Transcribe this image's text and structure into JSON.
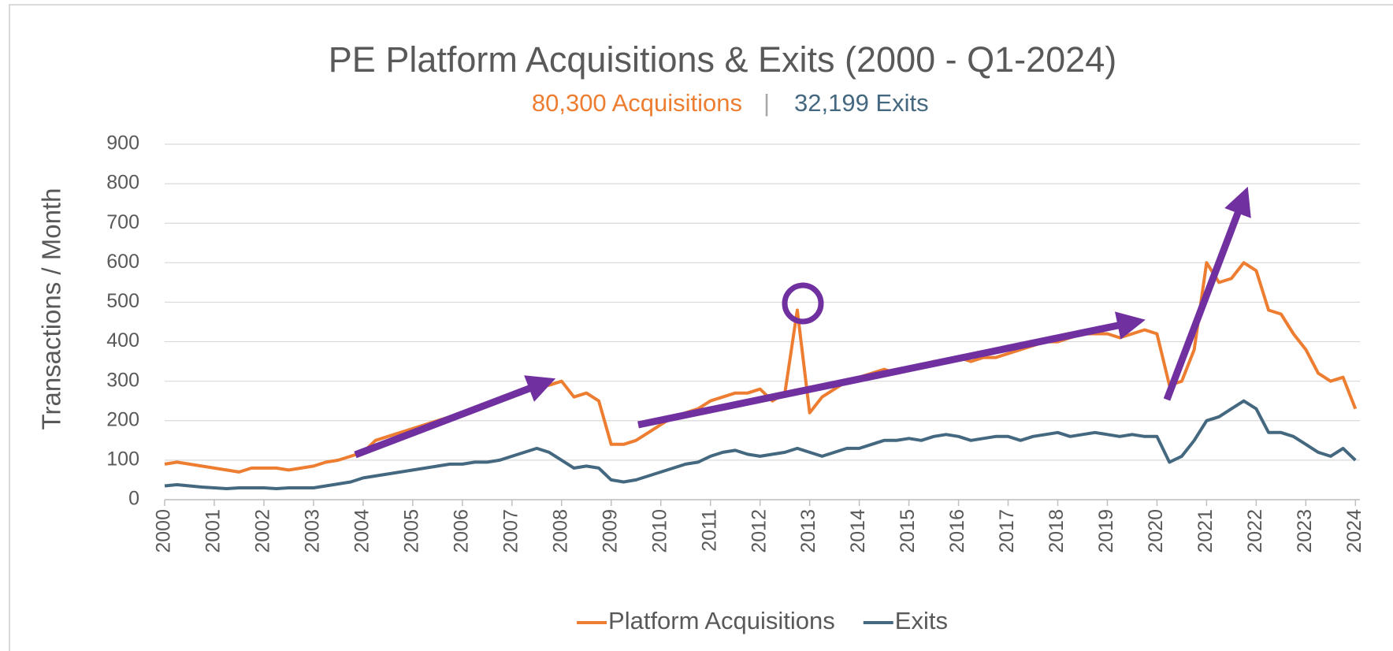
{
  "chart_data": {
    "type": "line",
    "title": "PE Platform Acquisitions & Exits (2000 - Q1-2024)",
    "subtitle": {
      "acquisitions": "80,300 Acquisitions",
      "separator": "|",
      "exits": "32,199 Exits"
    },
    "y_label": "Transactions / Month",
    "x": [
      2000,
      2000.25,
      2000.5,
      2000.75,
      2001,
      2001.25,
      2001.5,
      2001.75,
      2002,
      2002.25,
      2002.5,
      2002.75,
      2003,
      2003.25,
      2003.5,
      2003.75,
      2004,
      2004.25,
      2004.5,
      2004.75,
      2005,
      2005.25,
      2005.5,
      2005.75,
      2006,
      2006.25,
      2006.5,
      2006.75,
      2007,
      2007.25,
      2007.5,
      2007.75,
      2008,
      2008.25,
      2008.5,
      2008.75,
      2009,
      2009.25,
      2009.5,
      2009.75,
      2010,
      2010.25,
      2010.5,
      2010.75,
      2011,
      2011.25,
      2011.5,
      2011.75,
      2012,
      2012.25,
      2012.5,
      2012.75,
      2013,
      2013.25,
      2013.5,
      2013.75,
      2014,
      2014.25,
      2014.5,
      2014.75,
      2015,
      2015.25,
      2015.5,
      2015.75,
      2016,
      2016.25,
      2016.5,
      2016.75,
      2017,
      2017.25,
      2017.5,
      2017.75,
      2018,
      2018.25,
      2018.5,
      2018.75,
      2019,
      2019.25,
      2019.5,
      2019.75,
      2020,
      2020.25,
      2020.5,
      2020.75,
      2021,
      2021.25,
      2021.5,
      2021.75,
      2022,
      2022.25,
      2022.5,
      2022.75,
      2023,
      2023.25,
      2023.5,
      2023.75,
      2024
    ],
    "series": [
      {
        "name": "Platform Acquisitions",
        "color": "#ed7d31",
        "values": [
          90,
          95,
          90,
          85,
          80,
          75,
          70,
          80,
          80,
          80,
          75,
          80,
          85,
          95,
          100,
          110,
          120,
          150,
          160,
          170,
          180,
          190,
          200,
          210,
          220,
          230,
          240,
          250,
          260,
          280,
          290,
          290,
          300,
          260,
          270,
          250,
          140,
          140,
          150,
          170,
          190,
          210,
          220,
          230,
          250,
          260,
          270,
          270,
          280,
          250,
          270,
          480,
          220,
          260,
          280,
          300,
          310,
          320,
          330,
          320,
          330,
          340,
          350,
          350,
          360,
          350,
          360,
          360,
          370,
          380,
          390,
          400,
          400,
          410,
          420,
          420,
          420,
          410,
          420,
          430,
          420,
          290,
          300,
          380,
          600,
          550,
          560,
          600,
          580,
          480,
          470,
          420,
          380,
          320,
          300,
          310,
          230
        ]
      },
      {
        "name": "Exits",
        "color": "#44687f",
        "values": [
          35,
          38,
          35,
          32,
          30,
          28,
          30,
          30,
          30,
          28,
          30,
          30,
          30,
          35,
          40,
          45,
          55,
          60,
          65,
          70,
          75,
          80,
          85,
          90,
          90,
          95,
          95,
          100,
          110,
          120,
          130,
          120,
          100,
          80,
          85,
          80,
          50,
          45,
          50,
          60,
          70,
          80,
          90,
          95,
          110,
          120,
          125,
          115,
          110,
          115,
          120,
          130,
          120,
          110,
          120,
          130,
          130,
          140,
          150,
          150,
          155,
          150,
          160,
          165,
          160,
          150,
          155,
          160,
          160,
          150,
          160,
          165,
          170,
          160,
          165,
          170,
          165,
          160,
          165,
          160,
          160,
          95,
          110,
          150,
          200,
          210,
          230,
          250,
          230,
          170,
          170,
          160,
          140,
          120,
          110,
          130,
          100
        ]
      }
    ],
    "xlim": [
      2000,
      2024.09
    ],
    "xticks": [
      2000,
      2001,
      2002,
      2003,
      2004,
      2005,
      2006,
      2007,
      2008,
      2009,
      2010,
      2011,
      2012,
      2013,
      2014,
      2015,
      2016,
      2017,
      2018,
      2019,
      2020,
      2021,
      2022,
      2023,
      2024
    ],
    "ylim": [
      0,
      900
    ],
    "yticks": [
      0,
      100,
      200,
      300,
      400,
      500,
      600,
      700,
      800,
      900
    ],
    "grid": true,
    "legend": "bottom"
  }
}
